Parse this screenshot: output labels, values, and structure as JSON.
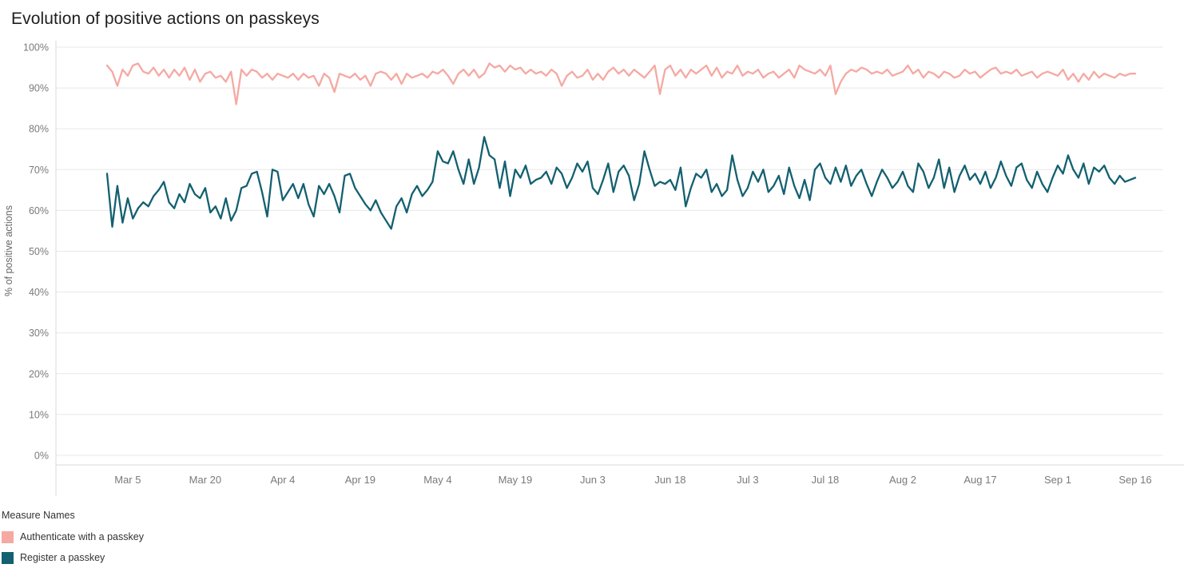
{
  "title": "Evolution of positive actions on passkeys",
  "y_axis_title": "% of positive actions",
  "legend": {
    "title": "Measure Names"
  },
  "chart_data": {
    "type": "line",
    "title": "Evolution of positive actions on passkeys",
    "xlabel": "",
    "ylabel": "% of positive actions",
    "ylim": [
      0,
      100
    ],
    "grid": "horizontal",
    "legend_position": "bottom-left",
    "y_ticks": [
      "0%",
      "10%",
      "20%",
      "30%",
      "40%",
      "50%",
      "60%",
      "70%",
      "80%",
      "90%",
      "100%"
    ],
    "x_tick_labels": [
      "Mar 5",
      "Mar 20",
      "Apr 4",
      "Apr 19",
      "May 4",
      "May 19",
      "Jun 3",
      "Jun 18",
      "Jul 3",
      "Jul 18",
      "Aug 2",
      "Aug 17",
      "Sep 1",
      "Sep 16"
    ],
    "x_tick_indices": [
      4,
      19,
      34,
      49,
      64,
      79,
      94,
      109,
      124,
      139,
      154,
      169,
      184,
      199
    ],
    "x_unit": "day",
    "series": [
      {
        "name": "Authenticate with a passkey",
        "color": "#F5A9A2",
        "values": [
          95.5,
          94,
          90.5,
          94.5,
          93,
          95.5,
          96,
          94,
          93.5,
          95,
          93,
          94.5,
          92.5,
          94.5,
          93,
          95,
          92,
          94.5,
          91.5,
          93.5,
          94,
          92.5,
          93,
          91.5,
          94,
          86,
          94.5,
          93,
          94.5,
          94,
          92.5,
          93.5,
          92,
          93.5,
          93,
          92.5,
          93.5,
          92,
          93.5,
          92.5,
          93,
          90.5,
          93.5,
          92.5,
          89,
          93.5,
          93,
          92.5,
          93.5,
          92,
          93,
          90.5,
          93.5,
          94,
          93.5,
          92,
          93.5,
          91,
          93.5,
          92.5,
          93,
          93.5,
          92.5,
          94,
          93.5,
          94.5,
          93,
          91,
          93.5,
          94.5,
          93,
          94.5,
          92.5,
          93.5,
          96,
          95,
          95.5,
          94,
          95.5,
          94.5,
          95,
          93.5,
          94.5,
          93.5,
          94,
          93,
          94.5,
          93.5,
          90.5,
          93,
          94,
          92.5,
          93,
          94.5,
          92,
          93.5,
          92,
          94,
          95,
          93.5,
          94.5,
          93,
          94.5,
          93.5,
          92.5,
          94,
          95.5,
          88.5,
          94.5,
          95.5,
          93,
          94.5,
          92.5,
          94.5,
          93.5,
          94.5,
          95.5,
          93,
          95,
          92.5,
          94,
          93.5,
          95.5,
          93,
          94,
          93.5,
          94.5,
          92.5,
          93.5,
          94,
          92.5,
          93.5,
          94.5,
          92.5,
          95.5,
          94.5,
          94,
          93.5,
          94.5,
          93,
          95.5,
          88.5,
          91.5,
          93.5,
          94.5,
          94,
          95,
          94.5,
          93.5,
          94,
          93.5,
          94.5,
          93,
          93.5,
          94,
          95.5,
          93.5,
          94.5,
          92.5,
          94,
          93.5,
          92.5,
          94,
          93.5,
          92.5,
          93,
          94.5,
          93.5,
          94,
          92.5,
          93.5,
          94.5,
          95,
          93.5,
          94,
          93.5,
          94.5,
          93,
          93.5,
          94,
          92.5,
          93.5,
          94,
          93.5,
          93,
          94.5,
          92,
          93.5,
          91.5,
          93.5,
          92,
          94,
          92.5,
          93.5,
          93,
          92.5,
          93.5,
          93,
          93.5,
          93.5
        ]
      },
      {
        "name": "Register a passkey",
        "color": "#136070",
        "values": [
          69,
          56,
          66,
          57,
          63,
          58,
          60.5,
          62,
          61,
          63.5,
          65,
          67,
          62,
          60.5,
          64,
          62,
          66.5,
          64,
          63,
          65.5,
          59.5,
          61,
          58,
          63,
          57.5,
          60,
          65.5,
          66,
          69,
          69.5,
          64.5,
          58.5,
          70,
          69.5,
          62.5,
          64.5,
          66.5,
          63,
          66.5,
          61.5,
          58.5,
          66,
          64,
          66.5,
          63.5,
          59.5,
          68.5,
          69,
          65.5,
          63.5,
          61.5,
          60,
          62.5,
          59.5,
          57.5,
          55.5,
          61,
          63,
          59.5,
          64,
          66,
          63.5,
          65,
          67,
          74.5,
          72,
          71.5,
          74.5,
          70,
          66.5,
          72.5,
          66.5,
          70.5,
          78,
          73.5,
          72.5,
          65.5,
          72,
          63.5,
          70,
          68,
          71,
          66.5,
          67.5,
          68,
          69.5,
          66.5,
          70.5,
          69,
          65.5,
          68,
          71.5,
          69.5,
          72,
          65.5,
          64,
          67.5,
          71.5,
          64.5,
          69.5,
          71,
          68.5,
          62.5,
          66.5,
          74.5,
          70,
          66,
          67,
          66.5,
          67.5,
          65,
          70.5,
          61,
          65.5,
          69,
          68,
          70,
          64.5,
          66.5,
          63.5,
          65,
          73.5,
          67.5,
          63.5,
          65.5,
          69.5,
          67,
          70,
          64.5,
          66,
          68.5,
          64,
          70.5,
          66,
          63,
          67.5,
          62.5,
          70,
          71.5,
          68,
          66.5,
          70.5,
          67,
          71,
          66,
          68.5,
          70,
          66.5,
          63.5,
          67,
          70,
          68,
          65.5,
          67,
          69.5,
          66,
          64.5,
          71.5,
          69.5,
          65.5,
          68,
          72.5,
          65.5,
          70.5,
          64.5,
          68.5,
          71,
          67.5,
          69,
          66.5,
          69.5,
          65.5,
          68,
          72,
          68.5,
          66,
          70.5,
          71.5,
          67.5,
          65.5,
          69.5,
          66.5,
          64.5,
          68,
          71,
          69,
          73.5,
          70,
          68,
          71.5,
          66.5,
          70.5,
          69.5,
          71,
          68,
          66.5,
          68.5,
          67,
          67.5,
          68
        ]
      }
    ]
  }
}
